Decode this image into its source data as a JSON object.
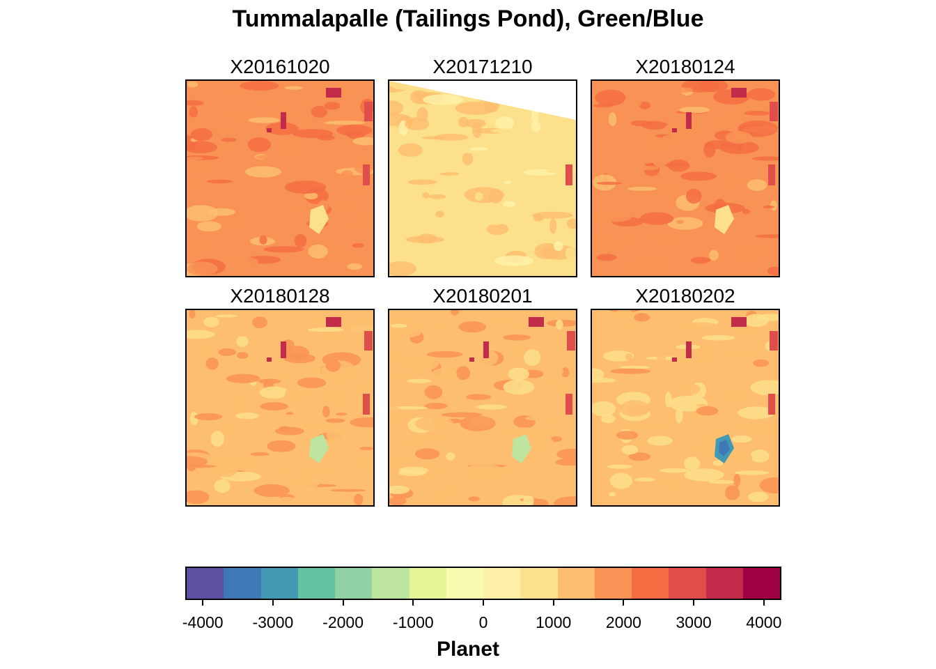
{
  "chart_data": {
    "type": "heatmap",
    "title": "Tummalapalle (Tailings Pond), Green/Blue",
    "panels": [
      {
        "label": "X20161020",
        "typical_value": 2000,
        "feature_min": 1000
      },
      {
        "label": "X20171210",
        "typical_value": 1000,
        "feature_min": 900
      },
      {
        "label": "X20180124",
        "typical_value": 2000,
        "feature_min": 900
      },
      {
        "label": "X20180128",
        "typical_value": 1500,
        "feature_min": -1200
      },
      {
        "label": "X20180201",
        "typical_value": 1500,
        "feature_min": -1200
      },
      {
        "label": "X20180202",
        "typical_value": 1200,
        "feature_min": -3000
      }
    ],
    "legend": {
      "title": "Planet",
      "position": "bottom",
      "range": [
        -4250,
        4250
      ],
      "ticks": [
        "-4000",
        "-3000",
        "-2000",
        "-1000",
        "0",
        "1000",
        "2000",
        "3000",
        "4000"
      ],
      "tick_values": [
        -4000,
        -3000,
        -2000,
        -1000,
        0,
        1000,
        2000,
        3000,
        4000
      ],
      "palette": [
        "#5E4FA2",
        "#3E78B6",
        "#4199B2",
        "#66C2A5",
        "#91D2A4",
        "#BEE5A0",
        "#E6F598",
        "#F7FBB0",
        "#FEF1A7",
        "#FDE08B",
        "#FDBE6F",
        "#F99355",
        "#F46D43",
        "#DF4E4B",
        "#C32B4B",
        "#9E0142"
      ]
    }
  }
}
